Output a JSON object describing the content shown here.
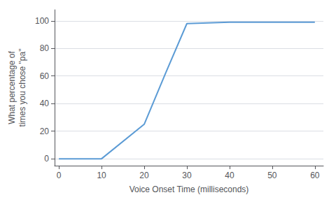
{
  "chart_data": {
    "type": "line",
    "x": [
      0,
      10,
      20,
      25,
      30,
      40,
      50,
      60
    ],
    "values": [
      0,
      0,
      25,
      62,
      98,
      99,
      99,
      99
    ],
    "color": "#5b9bd5",
    "xlabel": "Voice Onset Time (milliseconds)",
    "ylabel": "What percentage of\ntimes you chose \"pa\"",
    "xlim": [
      -1,
      62
    ],
    "ylim": [
      -5,
      108
    ],
    "xticks": [
      0,
      10,
      20,
      30,
      40,
      50,
      60
    ],
    "yticks": [
      0,
      20,
      40,
      60,
      80,
      100
    ],
    "grid": true
  }
}
